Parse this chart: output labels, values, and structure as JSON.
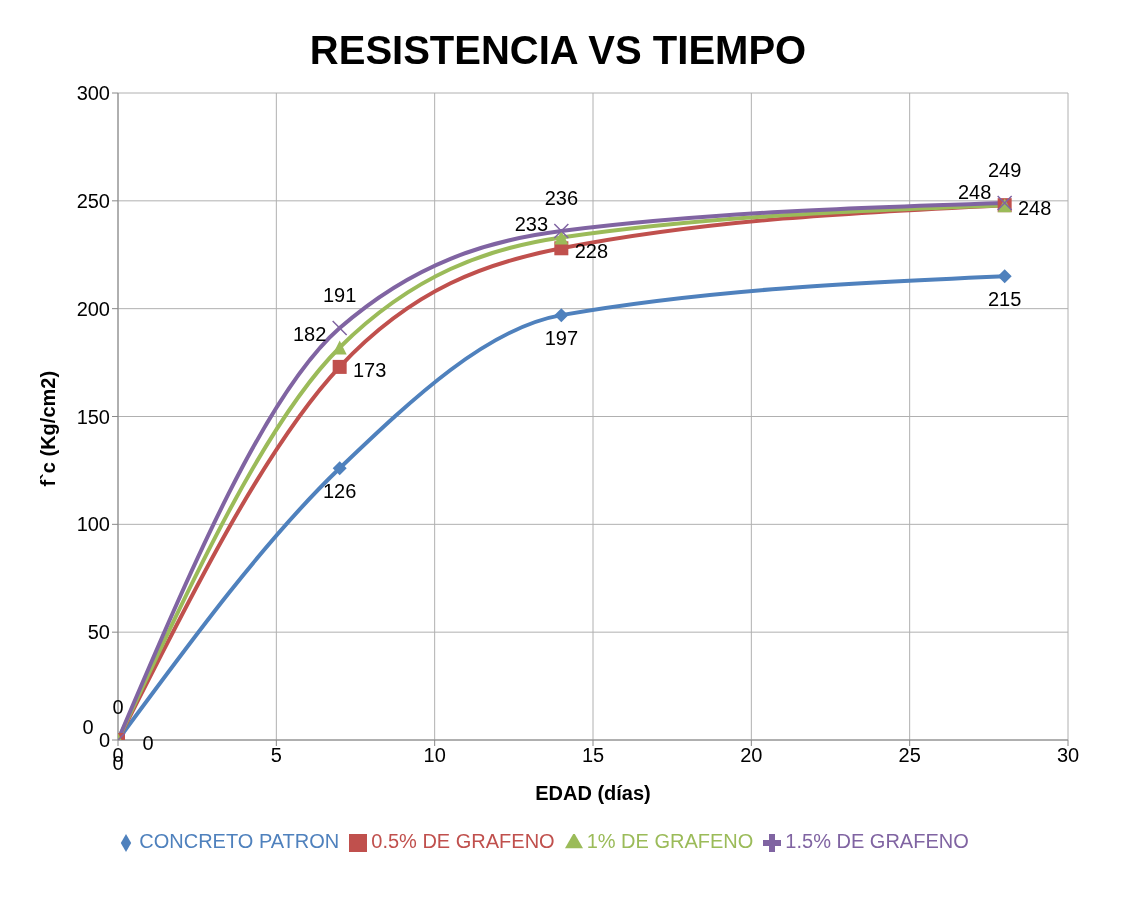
{
  "chart_data": {
    "type": "line",
    "title": "RESISTENCIA VS TIEMPO",
    "xlabel": "EDAD (días)",
    "ylabel": "f`c (Kg/cm2)",
    "x": [
      0,
      7,
      14,
      28
    ],
    "series": [
      {
        "name": "CONCRETO PATRON",
        "color": "#4f81bd",
        "marker": "diamond",
        "values": [
          0,
          126,
          197,
          215
        ]
      },
      {
        "name": "0.5% DE GRAFENO",
        "color": "#c0504d",
        "marker": "square",
        "values": [
          0,
          173,
          228,
          248
        ]
      },
      {
        "name": "1% DE GRAFENO",
        "color": "#9bbb59",
        "marker": "triangle",
        "values": [
          0,
          182,
          233,
          248
        ]
      },
      {
        "name": "1.5% DE GRAFENO",
        "color": "#8064a2",
        "marker": "cross",
        "values": [
          0,
          191,
          236,
          249
        ]
      }
    ],
    "xlim": [
      0,
      30
    ],
    "xticks": [
      0,
      5,
      10,
      15,
      20,
      25,
      30
    ],
    "ylim": [
      0,
      300
    ],
    "yticks": [
      0,
      50,
      100,
      150,
      200,
      250,
      300
    ],
    "grid": true,
    "legend": "bottom",
    "data_labels": true,
    "line_style": "solid"
  }
}
